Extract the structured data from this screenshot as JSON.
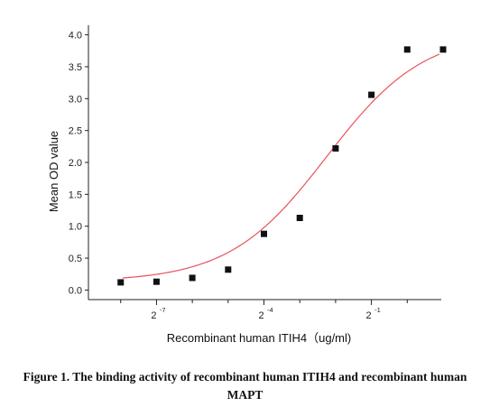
{
  "chart_data": {
    "type": "scatter",
    "xlabel": "Recombinant human  ITIH4（ug/ml)",
    "ylabel": "Mean OD value",
    "x_scale": "log2",
    "ylim": [
      -0.15,
      4.15
    ],
    "y_ticks": [
      0.0,
      0.5,
      1.0,
      1.5,
      2.0,
      2.5,
      3.0,
      3.5,
      4.0
    ],
    "y_tick_labels": [
      "0.0",
      "0.5",
      "1.0",
      "1.5",
      "2.0",
      "2.5",
      "3.0",
      "3.5",
      "4.0"
    ],
    "x_labeled_ticks": [
      {
        "exponent": -7,
        "base": "2",
        "sup": "-7"
      },
      {
        "exponent": -4,
        "base": "2",
        "sup": "-4"
      },
      {
        "exponent": -1,
        "base": "2",
        "sup": "-1"
      }
    ],
    "x_exponent_range": [
      -8.9,
      0.95
    ],
    "points": [
      {
        "x_exp": -8.0,
        "y": 0.12
      },
      {
        "x_exp": -7.0,
        "y": 0.13
      },
      {
        "x_exp": -6.0,
        "y": 0.19
      },
      {
        "x_exp": -5.0,
        "y": 0.32
      },
      {
        "x_exp": -4.0,
        "y": 0.88
      },
      {
        "x_exp": -3.0,
        "y": 1.13
      },
      {
        "x_exp": -2.0,
        "y": 2.22
      },
      {
        "x_exp": -1.0,
        "y": 3.06
      },
      {
        "x_exp": 0.0,
        "y": 3.77
      },
      {
        "x_exp": 1.0,
        "y": 3.77
      }
    ],
    "fit_curve": {
      "model": "4PL",
      "bottom": 0.13,
      "top": 4.05,
      "ec50_exp": -2.25,
      "hill_slope_log2": 0.53,
      "color": "#e8535b"
    },
    "marker_color": "#111111",
    "grid": false
  },
  "caption": {
    "line1": "Figure 1. The binding activity of recombinant human ITIH4 and recombinant human",
    "line2": "MAPT"
  }
}
